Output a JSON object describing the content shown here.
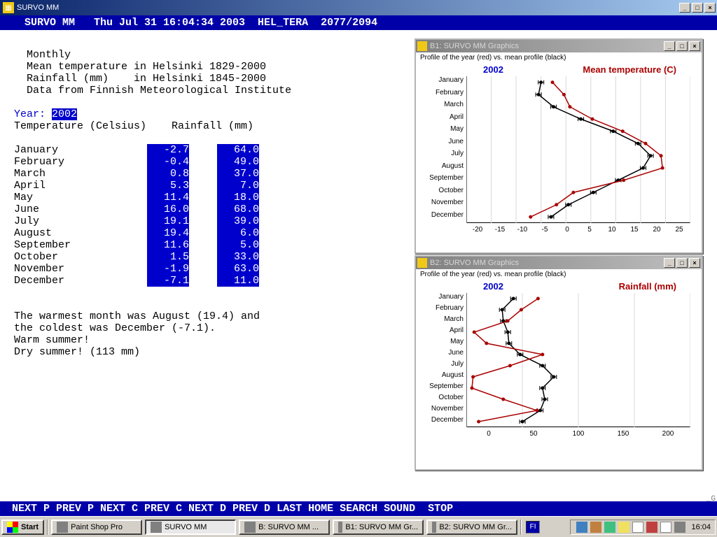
{
  "main_window": {
    "title": "SURVO MM"
  },
  "header": {
    "app": "SURVO MM",
    "line": "   SURVO MM   Thu Jul 31 16:04:34 2003  HEL_TERA  2077/2094"
  },
  "text": {
    "l1": "  Monthly",
    "l2": "  Mean temperature in Helsinki 1829-2000",
    "l3": "  Rainfall (mm)    in Helsinki 1845-2000",
    "l4": "  Data from Finnish Meteorological Institute",
    "year_label": "Year: ",
    "year_value": "2002",
    "headerline": "Temperature (Celsius)    Rainfall (mm)",
    "summary1": "The warmest month was August (19.4) and",
    "summary2": "the coldest was December (-7.1).",
    "summary3": "Warm summer!",
    "summary4": "Dry summer! (113 mm)"
  },
  "data": {
    "months": [
      "January",
      "February",
      "March",
      "April",
      "May",
      "June",
      "July",
      "August",
      "September",
      "October",
      "November",
      "December"
    ],
    "temp": [
      "-2.7",
      "-0.4",
      "0.8",
      "5.3",
      "11.4",
      "16.0",
      "19.1",
      "19.4",
      "11.6",
      "1.5",
      "-1.9",
      "-7.1"
    ],
    "rain": [
      "64.0",
      "49.0",
      "37.0",
      "7.0",
      "18.0",
      "68.0",
      "39.0",
      "6.0",
      "5.0",
      "33.0",
      "63.0",
      "11.0"
    ]
  },
  "footer": {
    "line": " NEXT P PREV P NEXT C PREV C NEXT D PREV D LAST HOME SEARCH SOUND  STOP"
  },
  "gfx1": {
    "title": "B1: SURVO MM  Graphics",
    "subtitle": "Profile of the year (red) vs. mean profile (black)",
    "year": "2002",
    "chart_title": "Mean temperature (C)",
    "x_ticks": [
      "-20",
      "-15",
      "-10",
      "-5",
      "0",
      "5",
      "10",
      "15",
      "20",
      "25"
    ],
    "xlim": [
      -20,
      25
    ],
    "red_values": [
      -2.7,
      -0.4,
      0.8,
      5.3,
      11.4,
      16.0,
      19.1,
      19.4,
      11.6,
      1.5,
      -1.9,
      -7.1
    ],
    "black_values": [
      -5.0,
      -5.5,
      -2.5,
      3.0,
      9.5,
      14.5,
      17.0,
      15.5,
      10.5,
      5.5,
      0.5,
      -3.0
    ],
    "colors": {
      "red": "#aa0000",
      "black": "#000000"
    }
  },
  "gfx2": {
    "title": "B2: SURVO MM  Graphics",
    "subtitle": "Profile of the year (red) vs. mean profile (black)",
    "year": "2002",
    "chart_title": "Rainfall (mm)",
    "x_ticks": [
      "0",
      "50",
      "100",
      "150",
      "200"
    ],
    "xlim": [
      0,
      200
    ],
    "red_values": [
      64,
      49,
      37,
      7,
      18,
      68,
      39,
      6,
      5,
      33,
      63,
      11
    ],
    "black_values": [
      42,
      32,
      33,
      37,
      38,
      48,
      68,
      78,
      68,
      70,
      66,
      50
    ],
    "colors": {
      "red": "#aa0000",
      "black": "#000000"
    }
  },
  "taskbar": {
    "start": "Start",
    "tasks": [
      {
        "label": "Paint Shop Pro",
        "active": false
      },
      {
        "label": "SURVO MM",
        "active": true
      },
      {
        "label": "B: SURVO MM ...",
        "active": false
      },
      {
        "label": "B1: SURVO MM Gr...",
        "active": false
      },
      {
        "label": "B2: SURVO MM Gr...",
        "active": false
      }
    ],
    "lang": "FI",
    "clock": "16:04"
  }
}
